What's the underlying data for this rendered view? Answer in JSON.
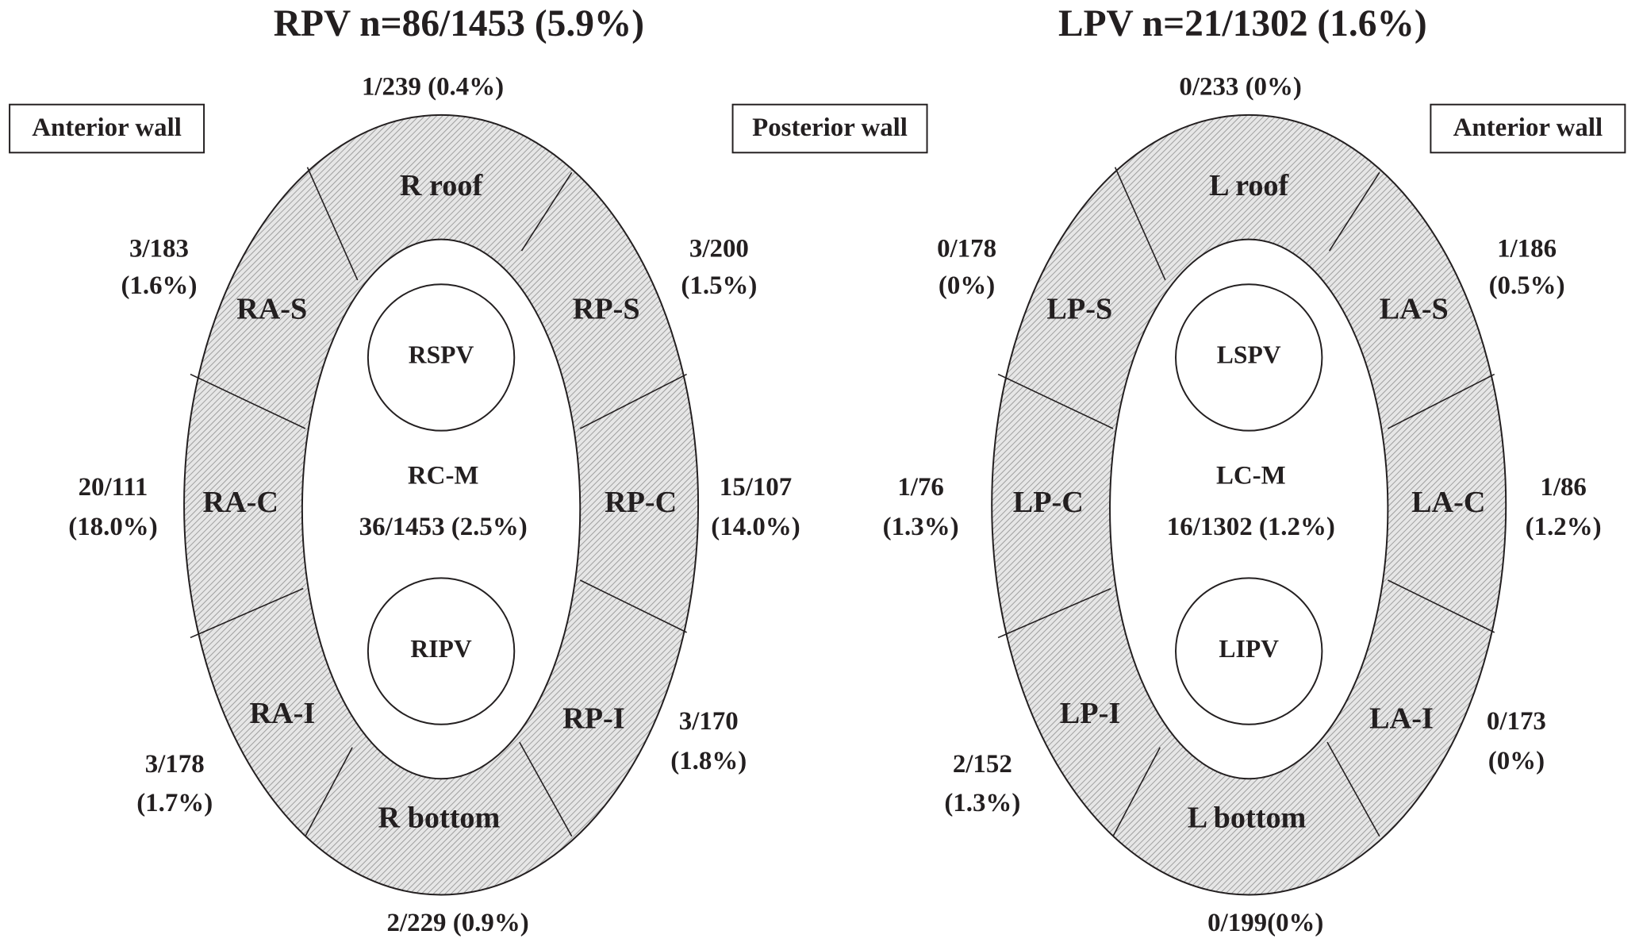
{
  "panels": [
    {
      "title": "RPV  n=86/1453 (5.9%)",
      "walls": [
        "Anterior wall",
        "Posterior wall"
      ],
      "center": {
        "label": "RC-M",
        "count": "36/1453 (2.5%)"
      },
      "veins": [
        "RSPV",
        "RIPV"
      ],
      "segments": [
        {
          "label": "R roof",
          "count": [
            "1/239 (0.4%)"
          ]
        },
        {
          "label": "RA-S",
          "count": [
            "3/183",
            "(1.6%)"
          ]
        },
        {
          "label": "RP-S",
          "count": [
            "3/200",
            "(1.5%)"
          ]
        },
        {
          "label": "RA-C",
          "count": [
            "20/111",
            "(18.0%)"
          ]
        },
        {
          "label": "RP-C",
          "count": [
            "15/107",
            "(14.0%)"
          ]
        },
        {
          "label": "RA-I",
          "count": [
            "3/178",
            "(1.7%)"
          ]
        },
        {
          "label": "RP-I",
          "count": [
            "3/170",
            "(1.8%)"
          ]
        },
        {
          "label": "R bottom",
          "count": [
            "2/229 (0.9%)"
          ]
        }
      ]
    },
    {
      "title": "LPV  n=21/1302 (1.6%)",
      "walls": [
        "Anterior wall"
      ],
      "center": {
        "label": "LC-M",
        "count": "16/1302 (1.2%)"
      },
      "veins": [
        "LSPV",
        "LIPV"
      ],
      "segments": [
        {
          "label": "L roof",
          "count": [
            "0/233 (0%)"
          ]
        },
        {
          "label": "LP-S",
          "count": [
            "0/178",
            "(0%)"
          ]
        },
        {
          "label": "LA-S",
          "count": [
            "1/186",
            "(0.5%)"
          ]
        },
        {
          "label": "LP-C",
          "count": [
            "1/76",
            "(1.3%)"
          ]
        },
        {
          "label": "LA-C",
          "count": [
            "1/86",
            "(1.2%)"
          ]
        },
        {
          "label": "LP-I",
          "count": [
            "2/152",
            "(1.3%)"
          ]
        },
        {
          "label": "LA-I",
          "count": [
            "0/173",
            "(0%)"
          ]
        },
        {
          "label": "L bottom",
          "count": [
            "0/199(0%)"
          ]
        }
      ]
    }
  ]
}
